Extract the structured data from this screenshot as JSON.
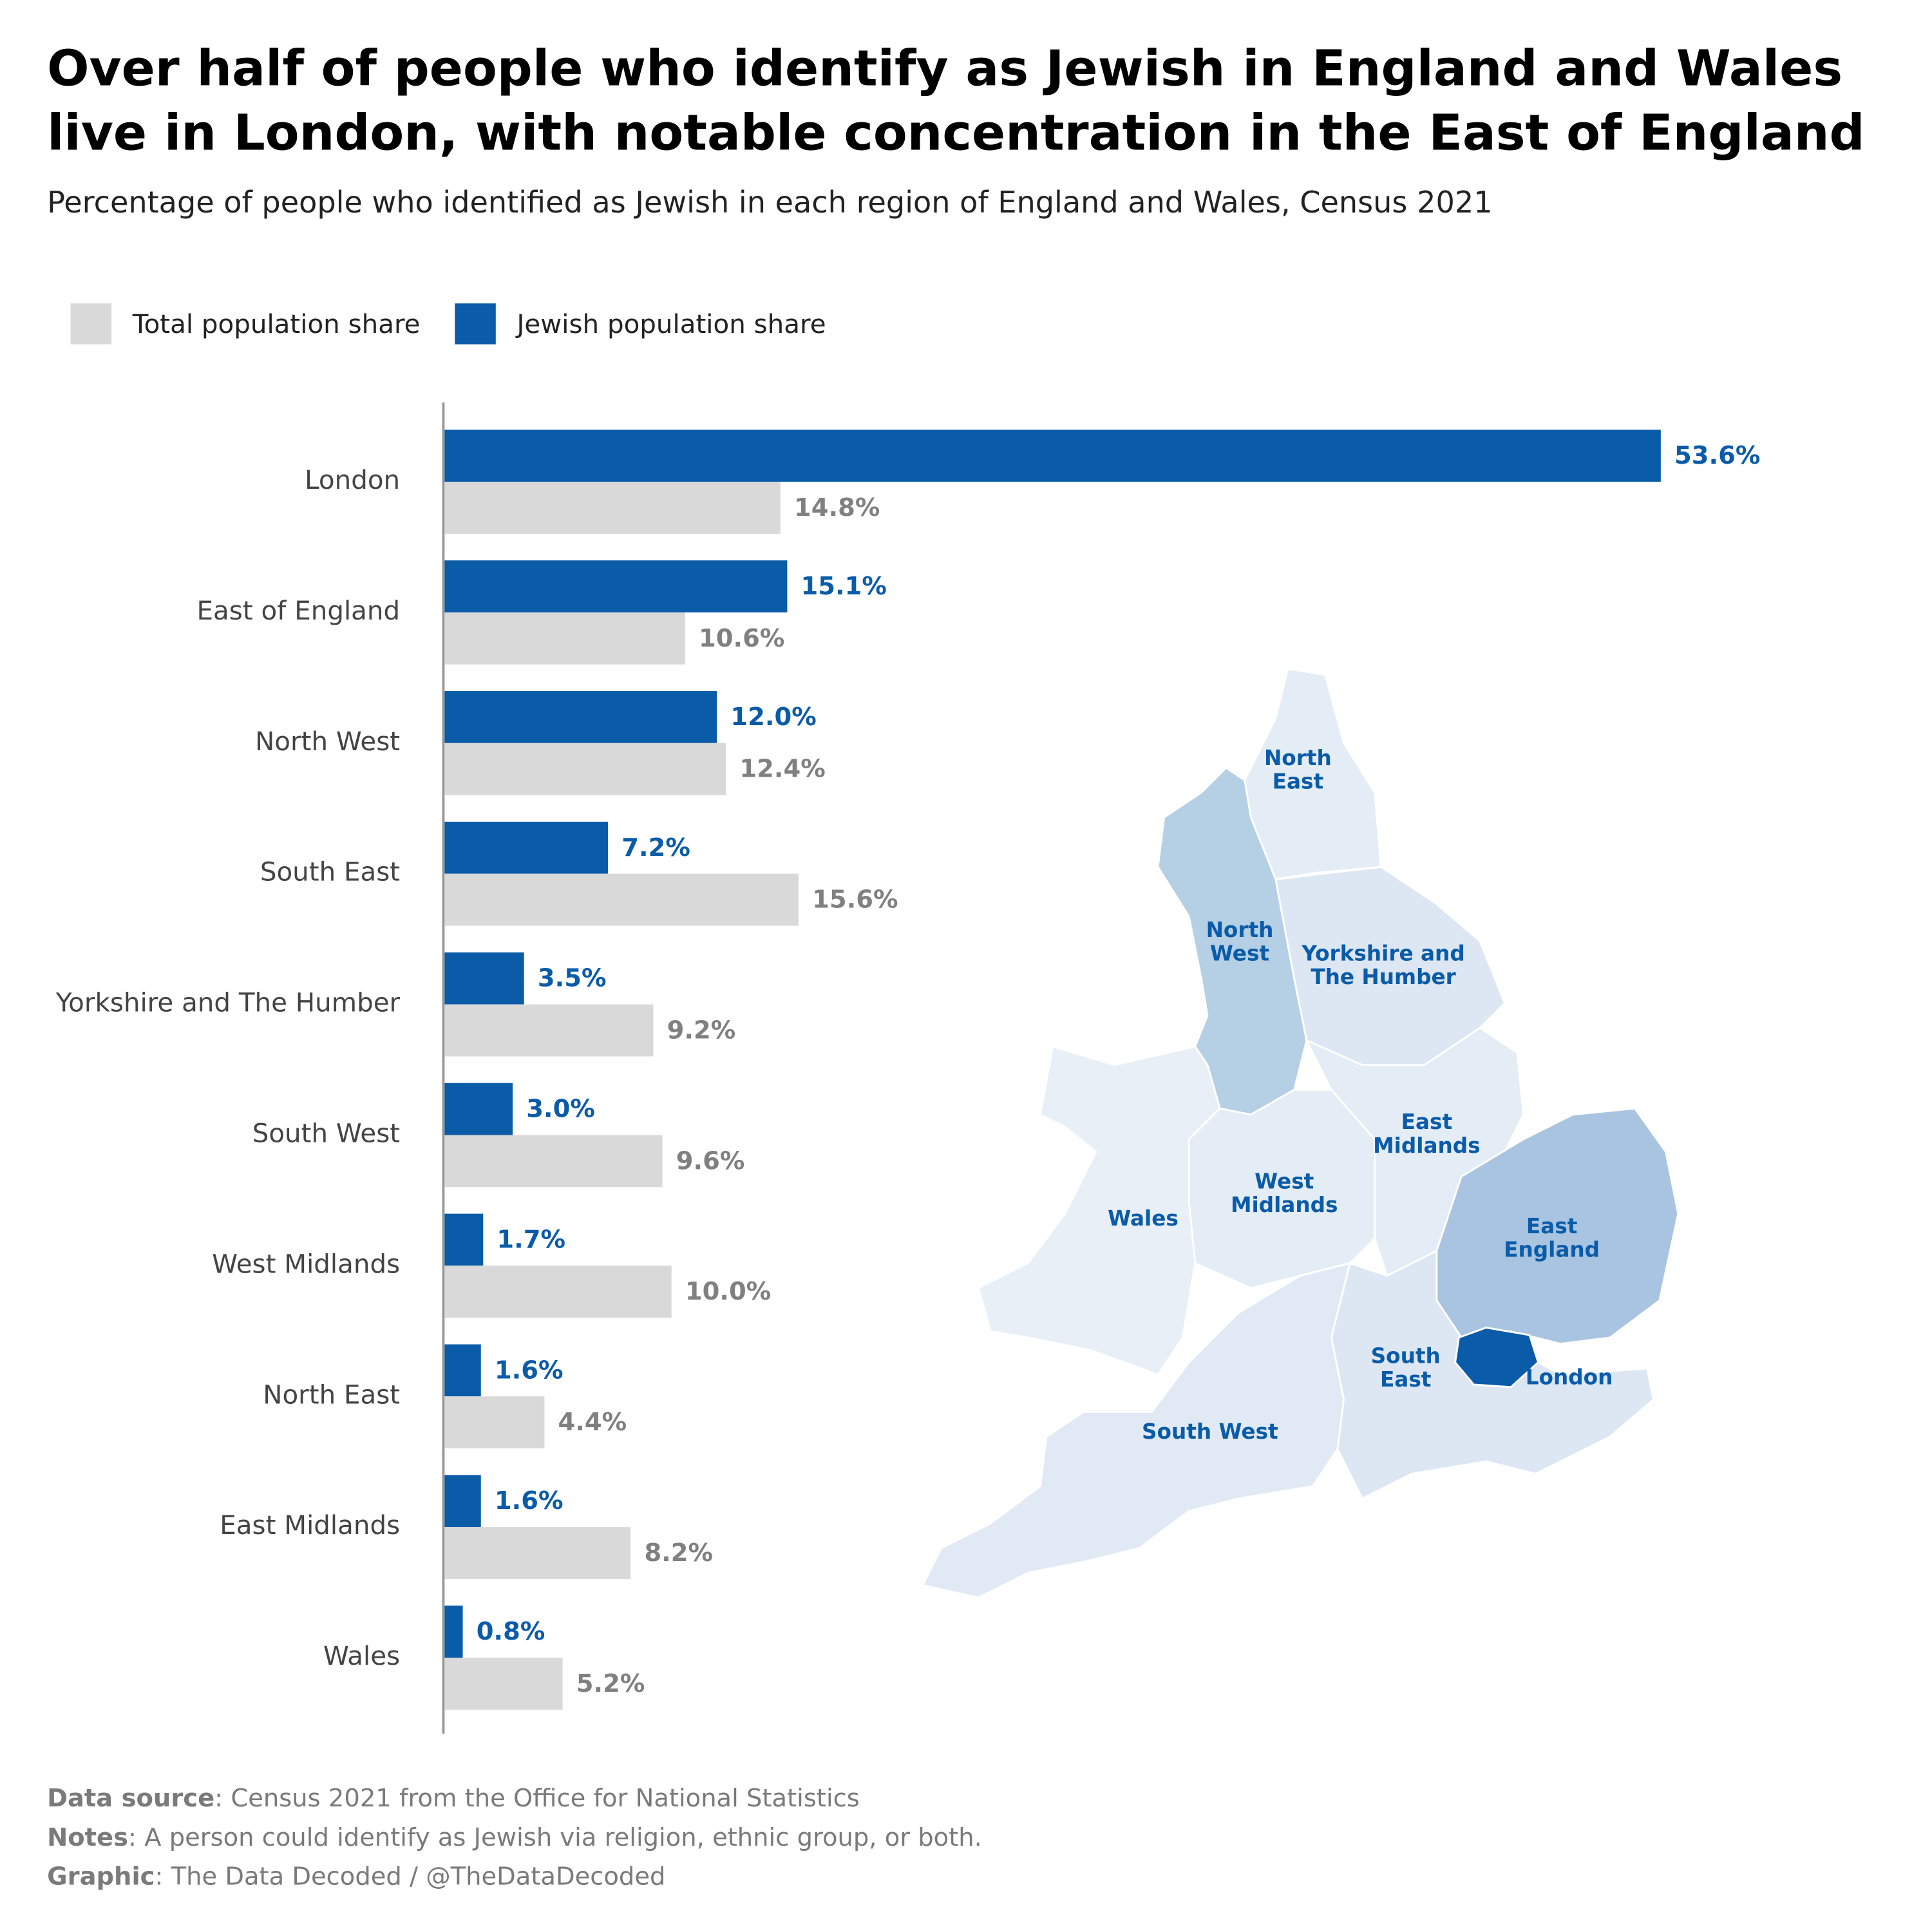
{
  "chart_data": {
    "type": "bar",
    "orientation": "horizontal",
    "title": [
      "Over half of people who identify as Jewish in England and Wales",
      "live in London, with notable concentration in the East of England"
    ],
    "subtitle": "Percentage of people who identified as Jewish in each region of England and Wales, Census 2021",
    "categories": [
      "London",
      "East of England",
      "North West",
      "South East",
      "Yorkshire and The Humber",
      "South West",
      "West Midlands",
      "North East",
      "East Midlands",
      "Wales"
    ],
    "series": [
      {
        "name": "Total population share",
        "color": "#d9d9d9",
        "label_color": "#808080",
        "values": [
          14.8,
          10.6,
          12.4,
          15.6,
          9.2,
          9.6,
          10.0,
          4.4,
          8.2,
          5.2
        ],
        "value_labels": [
          "14.8%",
          "10.6%",
          "12.4%",
          "15.6%",
          "9.2%",
          "9.6%",
          "10.0%",
          "4.4%",
          "8.2%",
          "5.2%"
        ]
      },
      {
        "name": "Jewish population share",
        "color": "#0a5ba8",
        "label_color": "#0a5ba8",
        "values": [
          53.6,
          15.1,
          12.0,
          7.2,
          3.5,
          3.0,
          1.7,
          1.6,
          1.6,
          0.8
        ],
        "value_labels": [
          "53.6%",
          "15.1%",
          "12.0%",
          "7.2%",
          "3.5%",
          "3.0%",
          "1.7%",
          "1.6%",
          "1.6%",
          "0.8%"
        ]
      }
    ]
  },
  "map": {
    "labels": [
      [
        "North",
        "East"
      ],
      [
        "North",
        "West"
      ],
      [
        "Yorkshire and",
        "The Humber"
      ],
      [
        "East",
        "Midlands"
      ],
      [
        "West",
        "Midlands"
      ],
      [
        "Wales"
      ],
      [
        "East",
        "England"
      ],
      [
        "South",
        "East"
      ],
      [
        "London"
      ],
      [
        "South West"
      ]
    ]
  },
  "footer": [
    {
      "label": "Data source",
      "text": ": Census 2021 from the Office for National Statistics"
    },
    {
      "label": "Notes",
      "text": ": A person could identify as Jewish via religion, ethnic group, or both."
    },
    {
      "label": "Graphic",
      "text": ": The Data Decoded / @TheDataDecoded"
    }
  ]
}
